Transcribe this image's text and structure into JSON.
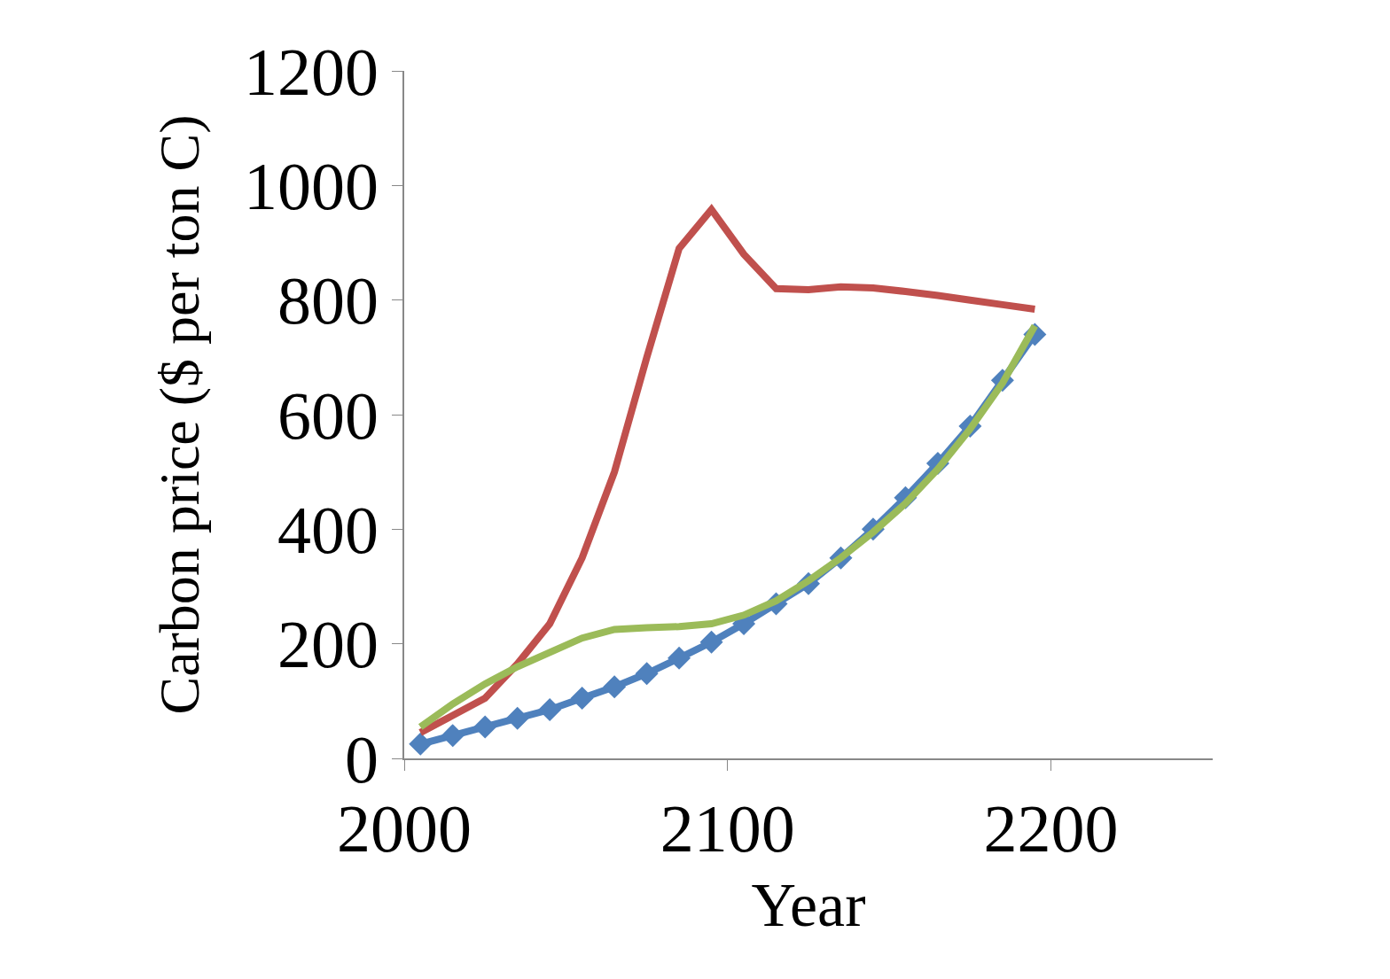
{
  "chart_data": {
    "type": "line",
    "xlabel": "Year",
    "ylabel": "Carbon price ($ per ton C)",
    "x": [
      2005,
      2015,
      2025,
      2035,
      2045,
      2055,
      2065,
      2075,
      2085,
      2095,
      2105,
      2115,
      2125,
      2135,
      2145,
      2155,
      2165,
      2175,
      2185,
      2195
    ],
    "series": [
      {
        "color": "#4f81bd",
        "marker": "diamond",
        "values": [
          25,
          40,
          55,
          70,
          85,
          105,
          125,
          148,
          175,
          203,
          235,
          270,
          305,
          350,
          400,
          455,
          515,
          580,
          660,
          740
        ]
      },
      {
        "color": "#c0504d",
        "marker": "none",
        "values": [
          45,
          75,
          105,
          165,
          235,
          350,
          500,
          700,
          890,
          958,
          880,
          820,
          818,
          823,
          821,
          815,
          808,
          800,
          792,
          784
        ]
      },
      {
        "color": "#9bbb59",
        "marker": "none",
        "values": [
          55,
          95,
          130,
          160,
          185,
          210,
          225,
          228,
          230,
          235,
          250,
          275,
          310,
          350,
          395,
          445,
          505,
          575,
          655,
          755
        ]
      }
    ],
    "xlim": [
      2000,
      2250
    ],
    "xticks": [
      2000,
      2100,
      2200
    ],
    "ylim": [
      0,
      1200
    ],
    "yticks": [
      0,
      200,
      400,
      600,
      800,
      1000,
      1200
    ]
  }
}
